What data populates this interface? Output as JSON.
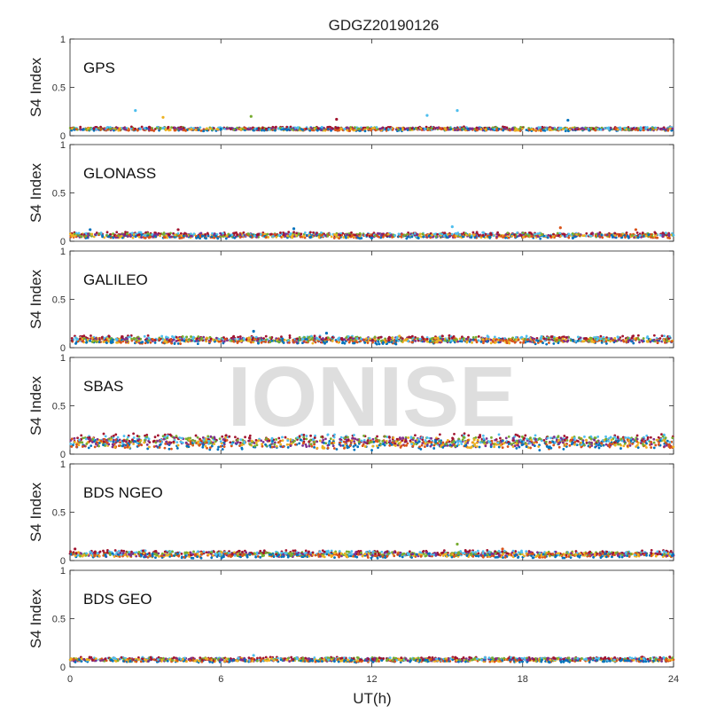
{
  "chart_data": {
    "type": "scatter",
    "title": "GDGZ20190126",
    "xlabel": "UT(h)",
    "ylabel": "S4 Index",
    "xlim": [
      0,
      24
    ],
    "ylim": [
      0,
      1
    ],
    "x_ticks": [
      0,
      6,
      12,
      18,
      24
    ],
    "y_ticks": [
      0,
      0.5,
      1
    ],
    "y_tick_labels": [
      "0",
      "0.5",
      "1"
    ],
    "grid": false,
    "watermark": "IONISE",
    "series_colors": [
      "#0072BD",
      "#D95319",
      "#EDB120",
      "#7E2F8E",
      "#77AC30",
      "#4DBEEE",
      "#A2142F"
    ],
    "panels": [
      {
        "label": "GPS",
        "typical_s4": [
          0.05,
          0.09
        ],
        "max_s4": 0.26,
        "coverage_hours": [
          0,
          24
        ],
        "spikes": [
          {
            "x": 2.6,
            "y": 0.26
          },
          {
            "x": 3.7,
            "y": 0.19
          },
          {
            "x": 7.2,
            "y": 0.2
          },
          {
            "x": 10.6,
            "y": 0.17
          },
          {
            "x": 14.2,
            "y": 0.21
          },
          {
            "x": 15.4,
            "y": 0.26
          },
          {
            "x": 19.8,
            "y": 0.16
          }
        ]
      },
      {
        "label": "GLONASS",
        "typical_s4": [
          0.03,
          0.09
        ],
        "max_s4": 0.16,
        "coverage_hours": [
          0,
          24
        ],
        "spikes": [
          {
            "x": 0.8,
            "y": 0.12
          },
          {
            "x": 4.3,
            "y": 0.12
          },
          {
            "x": 8.9,
            "y": 0.13
          },
          {
            "x": 15.2,
            "y": 0.15
          },
          {
            "x": 19.5,
            "y": 0.14
          },
          {
            "x": 22.5,
            "y": 0.12
          }
        ]
      },
      {
        "label": "GALILEO",
        "typical_s4": [
          0.04,
          0.12
        ],
        "max_s4": 0.17,
        "coverage_hours": [
          0,
          24
        ],
        "spikes": [
          {
            "x": 7.3,
            "y": 0.17
          },
          {
            "x": 10.2,
            "y": 0.15
          },
          {
            "x": 13.1,
            "y": 0.12
          }
        ]
      },
      {
        "label": "SBAS",
        "typical_s4": [
          0.05,
          0.2
        ],
        "max_s4": 0.23,
        "coverage_hours": [
          0,
          24
        ],
        "spikes": []
      },
      {
        "label": "BDS NGEO",
        "typical_s4": [
          0.03,
          0.1
        ],
        "max_s4": 0.17,
        "coverage_hours": [
          0,
          24
        ],
        "spikes": [
          {
            "x": 0.2,
            "y": 0.12
          },
          {
            "x": 15.4,
            "y": 0.17
          },
          {
            "x": 17.2,
            "y": 0.12
          }
        ]
      },
      {
        "label": "BDS GEO",
        "typical_s4": [
          0.05,
          0.1
        ],
        "max_s4": 0.12,
        "coverage_hours": [
          0,
          24
        ],
        "spikes": [
          {
            "x": 7.3,
            "y": 0.12
          }
        ]
      }
    ]
  }
}
